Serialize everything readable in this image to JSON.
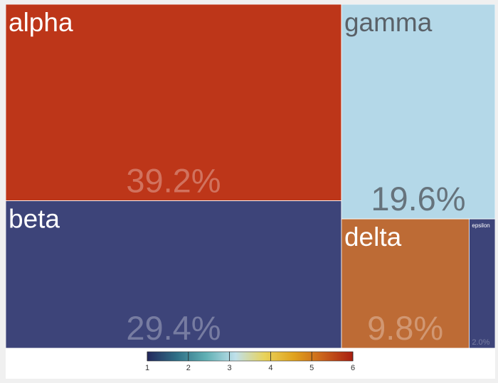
{
  "chart_data": {
    "type": "treemap",
    "items": [
      {
        "name": "alpha",
        "percent_label": "39.2%",
        "value": 39.2,
        "color_value": 6,
        "color": "#bd3619"
      },
      {
        "name": "beta",
        "percent_label": "29.4%",
        "value": 29.4,
        "color_value": 1,
        "color": "#3d4479"
      },
      {
        "name": "gamma",
        "percent_label": "19.6%",
        "value": 19.6,
        "color_value": 3,
        "color": "#b4d8e8"
      },
      {
        "name": "delta",
        "percent_label": "9.8%",
        "value": 9.8,
        "color_value": 5.4,
        "color": "#bd6b35"
      },
      {
        "name": "epsilon",
        "percent_label": "2.0%",
        "value": 2.0,
        "color_value": 1,
        "color": "#3d4479"
      }
    ],
    "colorbar": {
      "ticks": [
        "1",
        "2",
        "3",
        "4",
        "5",
        "6"
      ],
      "range": [
        1,
        6
      ],
      "stops": [
        "#23285c",
        "#2f6f86",
        "#60b0b4",
        "#bfe0ea",
        "#e9d35a",
        "#e0a21d",
        "#c9601b",
        "#a81e10"
      ]
    }
  }
}
